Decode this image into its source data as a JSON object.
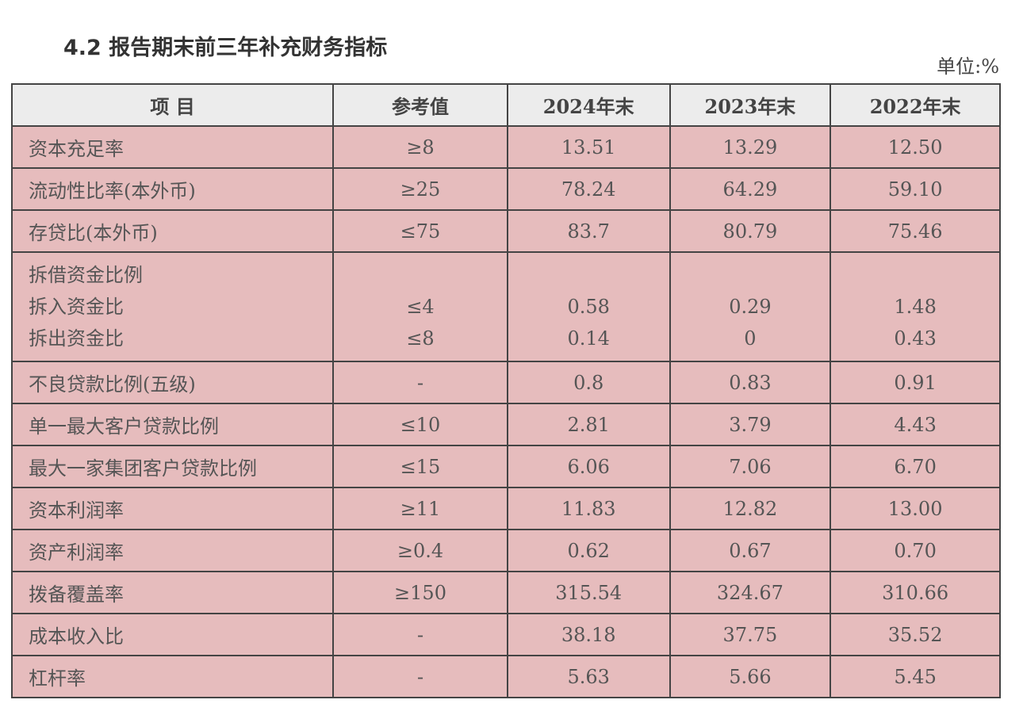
{
  "title": "4.2 报告期末前三年补充财务指标",
  "unit": "单位:%",
  "headers": [
    "项  目",
    "参考值",
    "2024年末",
    "2023年末",
    "2022年末"
  ],
  "rows": [
    {
      "name": "资本充足率",
      "ref": "≥8",
      "y2024": "13.51",
      "y2023": "13.29",
      "y2022": "12.50"
    },
    {
      "name": "流动性比率(本外币)",
      "ref": "≥25",
      "y2024": "78.24",
      "y2023": "64.29",
      "y2022": "59.10"
    },
    {
      "name": "存贷比(本外币)",
      "ref": "≤75",
      "y2024": "83.7",
      "y2023": "80.79",
      "y2022": "75.46"
    }
  ],
  "interbank": {
    "name": "拆借资金比例",
    "sub": [
      {
        "name": "拆入资金比",
        "ref": "≤4",
        "y2024": "0.58",
        "y2023": "0.29",
        "y2022": "1.48"
      },
      {
        "name": "拆出资金比",
        "ref": "≤8",
        "y2024": "0.14",
        "y2023": "0",
        "y2022": "0.43"
      }
    ]
  },
  "rows2": [
    {
      "name": "不良贷款比例(五级)",
      "ref": "-",
      "y2024": "0.8",
      "y2023": "0.83",
      "y2022": "0.91"
    },
    {
      "name": "单一最大客户贷款比例",
      "ref": "≤10",
      "y2024": "2.81",
      "y2023": "3.79",
      "y2022": "4.43"
    },
    {
      "name": "最大一家集团客户贷款比例",
      "ref": "≤15",
      "y2024": "6.06",
      "y2023": "7.06",
      "y2022": "6.70"
    },
    {
      "name": "资本利润率",
      "ref": "≥11",
      "y2024": "11.83",
      "y2023": "12.82",
      "y2022": "13.00"
    },
    {
      "name": "资产利润率",
      "ref": "≥0.4",
      "y2024": "0.62",
      "y2023": "0.67",
      "y2022": "0.70"
    },
    {
      "name": "拨备覆盖率",
      "ref": "≥150",
      "y2024": "315.54",
      "y2023": "324.67",
      "y2022": "310.66"
    },
    {
      "name": "成本收入比",
      "ref": "-",
      "y2024": "38.18",
      "y2023": "37.75",
      "y2022": "35.52"
    },
    {
      "name": "杠杆率",
      "ref": "-",
      "y2024": "5.63",
      "y2023": "5.66",
      "y2022": "5.45"
    }
  ]
}
